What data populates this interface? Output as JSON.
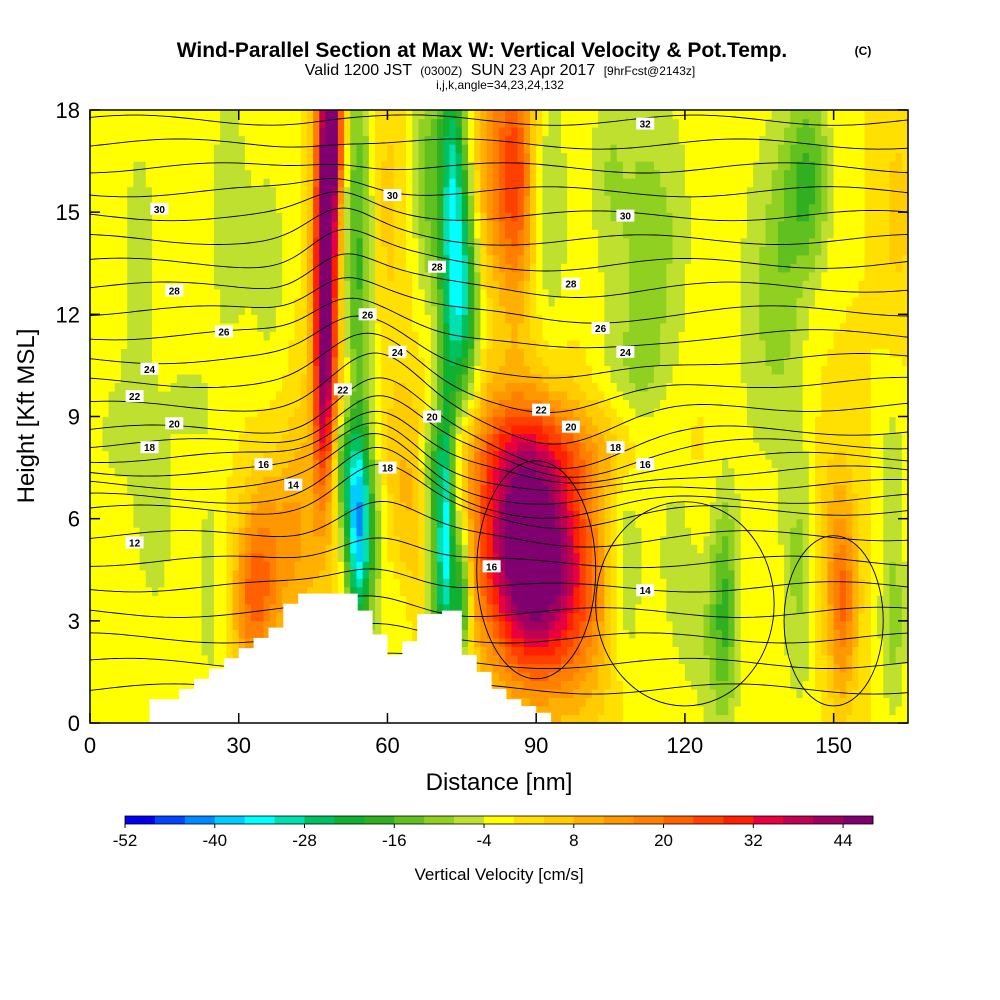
{
  "chart_data": {
    "type": "heatmap",
    "title": "Wind-Parallel Section at Max W: Vertical Velocity & Pot.Temp.",
    "title_mark": "(C)",
    "subtitle_pre": "Valid 1200 JST",
    "subtitle_zulu": "(0300Z)",
    "subtitle_date": "SUN 23 Apr 2017",
    "subtitle_fcst": "[9hrFcst@2143z]",
    "subtitle2": "i,j,k,angle=34,23,24,132",
    "xlabel": "Distance [nm]",
    "ylabel": "Height [Kft MSL]",
    "xlim": [
      0,
      165
    ],
    "ylim": [
      0,
      18
    ],
    "x_ticks": [
      "0",
      "30",
      "60",
      "90",
      "120",
      "150"
    ],
    "y_ticks": [
      "0",
      "3",
      "6",
      "9",
      "12",
      "15",
      "18"
    ],
    "colorbar": {
      "label": "Vertical Velocity [cm/s]",
      "min": -52,
      "max": 48,
      "step": 4,
      "tick_labels": [
        "-52",
        "-40",
        "-28",
        "-16",
        "-4",
        "8",
        "20",
        "32",
        "44"
      ],
      "colors": [
        "#0000ee",
        "#0044ff",
        "#0088ff",
        "#00ccff",
        "#00ffff",
        "#00e0b0",
        "#00c060",
        "#10b030",
        "#30b020",
        "#60c020",
        "#90d020",
        "#c0e030",
        "#ffff00",
        "#ffe000",
        "#ffcc00",
        "#ffb000",
        "#ff9800",
        "#ff8000",
        "#ff6000",
        "#ff4000",
        "#ff2000",
        "#e80040",
        "#c00050",
        "#a00060",
        "#800070"
      ]
    },
    "terrain": [
      [
        0,
        0
      ],
      [
        12,
        0
      ],
      [
        12,
        0.7
      ],
      [
        18,
        0.7
      ],
      [
        18,
        1
      ],
      [
        21,
        1
      ],
      [
        21,
        1.3
      ],
      [
        24,
        1.3
      ],
      [
        24,
        1.6
      ],
      [
        27,
        1.6
      ],
      [
        27,
        1.9
      ],
      [
        30,
        1.9
      ],
      [
        30,
        2.2
      ],
      [
        33,
        2.2
      ],
      [
        33,
        2.5
      ],
      [
        36,
        2.5
      ],
      [
        36,
        2.8
      ],
      [
        39,
        2.8
      ],
      [
        39,
        3.5
      ],
      [
        42,
        3.5
      ],
      [
        42,
        3.8
      ],
      [
        54,
        3.8
      ],
      [
        54,
        3.3
      ],
      [
        57,
        3.3
      ],
      [
        57,
        2.6
      ],
      [
        60,
        2.6
      ],
      [
        60,
        2.0
      ],
      [
        63,
        2.0
      ],
      [
        63,
        2.4
      ],
      [
        66,
        2.4
      ],
      [
        66,
        3.2
      ],
      [
        71,
        3.2
      ],
      [
        71,
        3.3
      ],
      [
        75,
        3.3
      ],
      [
        75,
        2.0
      ],
      [
        78,
        2.0
      ],
      [
        78,
        1.5
      ],
      [
        81,
        1.5
      ],
      [
        81,
        1.0
      ],
      [
        84,
        1.0
      ],
      [
        84,
        0.7
      ],
      [
        87,
        0.7
      ],
      [
        87,
        0.5
      ],
      [
        90,
        0.5
      ],
      [
        90,
        0.3
      ],
      [
        93,
        0.3
      ],
      [
        93,
        0
      ]
    ],
    "w_features": [
      {
        "x": 90,
        "y": 4.5,
        "sx": 7,
        "sy": 2.3,
        "amp": 44
      },
      {
        "x": 86,
        "y": 6.5,
        "sx": 7,
        "sy": 2.5,
        "amp": 20
      },
      {
        "x": 92,
        "y": 8.0,
        "sx": 14,
        "sy": 1.1,
        "amp": 10
      },
      {
        "x": 100,
        "y": 3.5,
        "sx": 5,
        "sy": 2.5,
        "amp": 8
      },
      {
        "x": 47,
        "y": 11,
        "sx": 1.4,
        "sy": 3,
        "amp": 28
      },
      {
        "x": 48,
        "y": 15,
        "sx": 1.8,
        "sy": 3.2,
        "amp": 44
      },
      {
        "x": 49,
        "y": 17.3,
        "sx": 1.6,
        "sy": 1.2,
        "amp": 28
      },
      {
        "x": 51,
        "y": 9,
        "sx": 3,
        "sy": 1.5,
        "amp": 14
      },
      {
        "x": 54,
        "y": 14,
        "sx": 2.5,
        "sy": 4,
        "amp": -18
      },
      {
        "x": 59,
        "y": 15,
        "sx": 3,
        "sy": 3.5,
        "amp": 6
      },
      {
        "x": 68,
        "y": 16,
        "sx": 2,
        "sy": 2.5,
        "amp": -12
      },
      {
        "x": 73,
        "y": 15,
        "sx": 2,
        "sy": 4,
        "amp": -30
      },
      {
        "x": 76,
        "y": 12.5,
        "sx": 2,
        "sy": 2.5,
        "amp": -20
      },
      {
        "x": 81,
        "y": 16.5,
        "sx": 3,
        "sy": 2.5,
        "amp": 14
      },
      {
        "x": 86,
        "y": 16,
        "sx": 2.5,
        "sy": 2.5,
        "amp": 24
      },
      {
        "x": 93,
        "y": 15,
        "sx": 2.5,
        "sy": 3,
        "amp": -8
      },
      {
        "x": 54,
        "y": 6,
        "sx": 1.7,
        "sy": 2.5,
        "amp": -36
      },
      {
        "x": 51,
        "y": 7.8,
        "sx": 1.6,
        "sy": 1.3,
        "amp": -22
      },
      {
        "x": 57,
        "y": 5.5,
        "sx": 2,
        "sy": 2,
        "amp": -10
      },
      {
        "x": 62,
        "y": 3,
        "sx": 2,
        "sy": 1.5,
        "amp": -6
      },
      {
        "x": 70,
        "y": 5,
        "sx": 1.5,
        "sy": 2.5,
        "amp": -18
      },
      {
        "x": 72,
        "y": 5.3,
        "sx": 1.2,
        "sy": 3,
        "amp": -28
      },
      {
        "x": 75,
        "y": 3.8,
        "sx": 1.2,
        "sy": 1.5,
        "amp": -26
      },
      {
        "x": 69,
        "y": 7.8,
        "sx": 2,
        "sy": 1,
        "amp": -12
      },
      {
        "x": 45,
        "y": 6.5,
        "sx": 4,
        "sy": 3,
        "amp": 6
      },
      {
        "x": 64,
        "y": 6.5,
        "sx": 3.5,
        "sy": 2.5,
        "amp": 8
      },
      {
        "x": 35,
        "y": 4.5,
        "sx": 3,
        "sy": 2,
        "amp": 16
      },
      {
        "x": 32,
        "y": 3.5,
        "sx": 2.5,
        "sy": 1.5,
        "amp": 12
      },
      {
        "x": 41,
        "y": 5.5,
        "sx": 3,
        "sy": 2,
        "amp": 8
      },
      {
        "x": 10,
        "y": 13,
        "sx": 2.5,
        "sy": 3,
        "amp": -8
      },
      {
        "x": 28,
        "y": 15,
        "sx": 3,
        "sy": 3,
        "amp": -7
      },
      {
        "x": 36,
        "y": 13.5,
        "sx": 3,
        "sy": 2.5,
        "amp": -6
      },
      {
        "x": 13,
        "y": 6,
        "sx": 3,
        "sy": 2,
        "amp": -7
      },
      {
        "x": 20,
        "y": 9.5,
        "sx": 4,
        "sy": 1.2,
        "amp": -5
      },
      {
        "x": 24,
        "y": 4,
        "sx": 2,
        "sy": 2.5,
        "amp": -6
      },
      {
        "x": 5,
        "y": 8.5,
        "sx": 3,
        "sy": 1.5,
        "amp": -5
      },
      {
        "x": 112,
        "y": 13.5,
        "sx": 3,
        "sy": 3.5,
        "amp": -10
      },
      {
        "x": 118,
        "y": 14.5,
        "sx": 3,
        "sy": 3,
        "amp": -6
      },
      {
        "x": 135,
        "y": 12,
        "sx": 4,
        "sy": 4,
        "amp": -6
      },
      {
        "x": 145,
        "y": 16,
        "sx": 3,
        "sy": 2,
        "amp": -16
      },
      {
        "x": 140,
        "y": 13.5,
        "sx": 3,
        "sy": 3,
        "amp": -8
      },
      {
        "x": 108,
        "y": 10.5,
        "sx": 5,
        "sy": 1.2,
        "amp": -5
      },
      {
        "x": 105,
        "y": 16,
        "sx": 3,
        "sy": 2.5,
        "amp": -8
      },
      {
        "x": 108,
        "y": 4.5,
        "sx": 2.5,
        "sy": 2.2,
        "amp": -10
      },
      {
        "x": 118,
        "y": 5,
        "sx": 2.5,
        "sy": 1.8,
        "amp": -6
      },
      {
        "x": 128,
        "y": 3.5,
        "sx": 2,
        "sy": 2.5,
        "amp": -14
      },
      {
        "x": 143,
        "y": 4.5,
        "sx": 2.5,
        "sy": 3,
        "amp": -9
      },
      {
        "x": 152,
        "y": 3.5,
        "sx": 2,
        "sy": 2,
        "amp": 16
      },
      {
        "x": 150,
        "y": 5,
        "sx": 3,
        "sy": 2.5,
        "amp": 7
      },
      {
        "x": 162,
        "y": 3,
        "sx": 2,
        "sy": 2,
        "amp": -10
      },
      {
        "x": 162,
        "y": 7.5,
        "sx": 2,
        "sy": 1.5,
        "amp": -6
      },
      {
        "x": 163,
        "y": 15,
        "sx": 2,
        "sy": 2,
        "amp": 6
      },
      {
        "x": 124,
        "y": 2.5,
        "sx": 4,
        "sy": 2,
        "amp": -6
      }
    ],
    "contour_labels": [
      {
        "text": "32",
        "x": 112,
        "y": 17.6
      },
      {
        "text": "30",
        "x": 14,
        "y": 15.1
      },
      {
        "text": "30",
        "x": 61,
        "y": 15.5
      },
      {
        "text": "30",
        "x": 108,
        "y": 14.9
      },
      {
        "text": "28",
        "x": 17,
        "y": 12.7
      },
      {
        "text": "28",
        "x": 70,
        "y": 13.4
      },
      {
        "text": "28",
        "x": 97,
        "y": 12.9
      },
      {
        "text": "26",
        "x": 27,
        "y": 11.5
      },
      {
        "text": "26",
        "x": 56,
        "y": 12.0
      },
      {
        "text": "26",
        "x": 103,
        "y": 11.6
      },
      {
        "text": "24",
        "x": 12,
        "y": 10.4
      },
      {
        "text": "24",
        "x": 62,
        "y": 10.9
      },
      {
        "text": "24",
        "x": 108,
        "y": 10.9
      },
      {
        "text": "22",
        "x": 9,
        "y": 9.6
      },
      {
        "text": "22",
        "x": 51,
        "y": 9.8
      },
      {
        "text": "22",
        "x": 91,
        "y": 9.2
      },
      {
        "text": "20",
        "x": 17,
        "y": 8.8
      },
      {
        "text": "20",
        "x": 69,
        "y": 9.0
      },
      {
        "text": "20",
        "x": 97,
        "y": 8.7
      },
      {
        "text": "18",
        "x": 12,
        "y": 8.1
      },
      {
        "text": "18",
        "x": 60,
        "y": 7.5
      },
      {
        "text": "18",
        "x": 106,
        "y": 8.1
      },
      {
        "text": "16",
        "x": 35,
        "y": 7.6
      },
      {
        "text": "16",
        "x": 112,
        "y": 7.6
      },
      {
        "text": "16",
        "x": 81,
        "y": 4.6
      },
      {
        "text": "14",
        "x": 41,
        "y": 7.0
      },
      {
        "text": "14",
        "x": 112,
        "y": 3.9
      },
      {
        "text": "12",
        "x": 9,
        "y": 5.3
      }
    ]
  }
}
